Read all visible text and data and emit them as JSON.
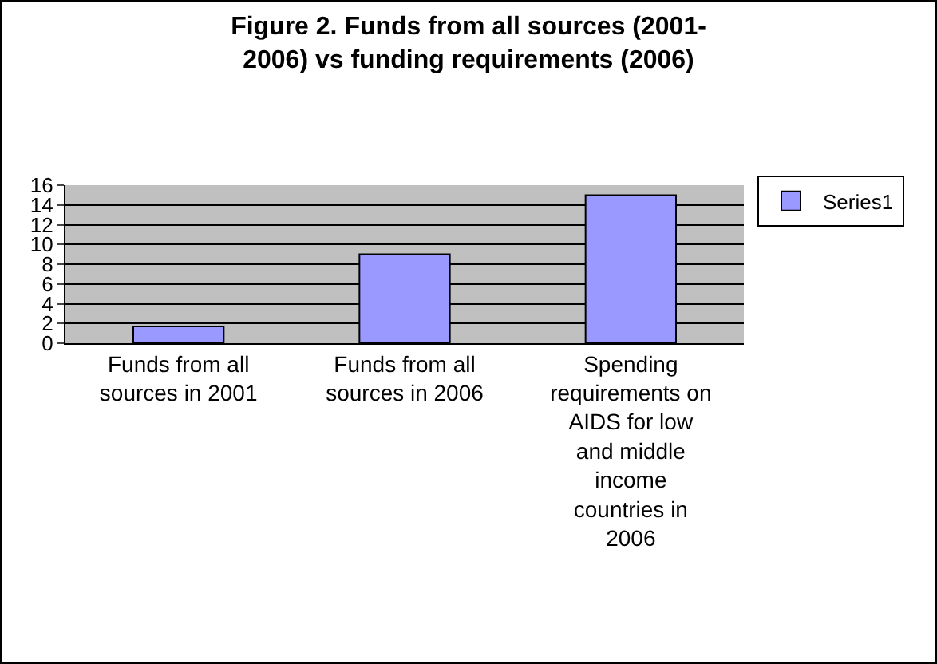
{
  "chart_data": {
    "type": "bar",
    "title": "Figure 2. Funds from all sources (2001-\n2006) vs funding requirements (2006)",
    "categories": [
      "Funds from all sources in 2001",
      "Funds from all sources in 2006",
      "Spending requirements on AIDS for low and middle income countries in 2006"
    ],
    "series": [
      {
        "name": "Series1",
        "color": "#9999ff",
        "values": [
          1.7,
          9,
          15
        ]
      }
    ],
    "ylim": [
      0,
      16
    ],
    "yticks": [
      0,
      2,
      4,
      6,
      8,
      10,
      12,
      14,
      16
    ],
    "grid": "y",
    "legend": "right"
  }
}
